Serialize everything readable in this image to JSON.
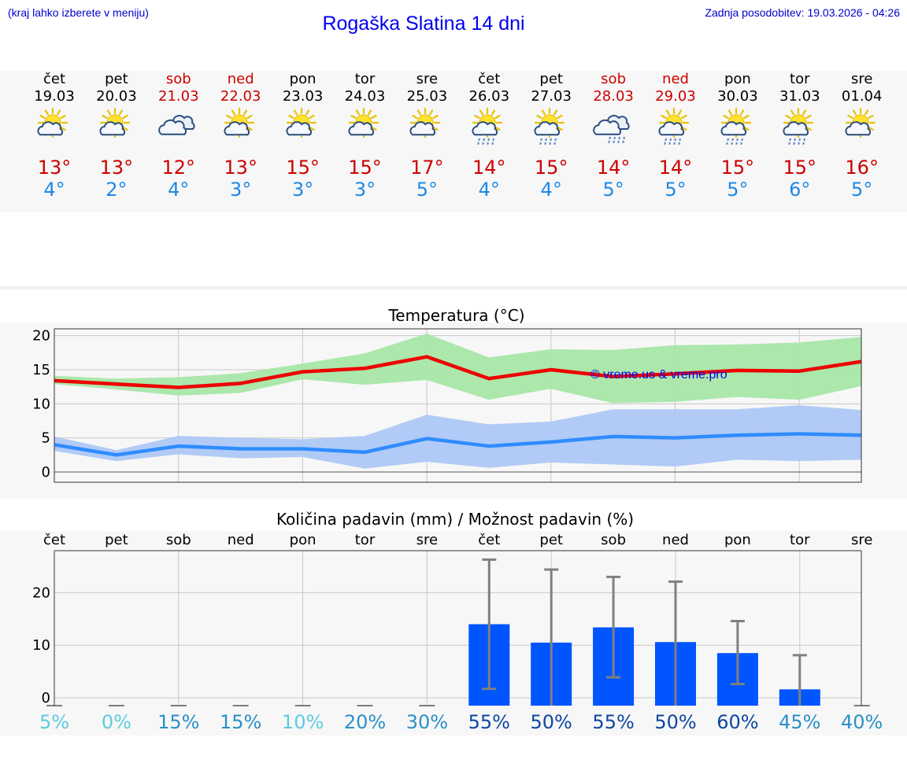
{
  "header": {
    "hint": "(kraj lahko izberete v meniju)",
    "title": "Rogaška Slatina 14 dni",
    "updated": "Zadnja posodobitev: 19.03.2026 - 04:26"
  },
  "days": [
    {
      "name": "čet",
      "date": "19.03",
      "weekend": false,
      "icon": "sun-cloud-icon",
      "max": "13°",
      "min": "4°"
    },
    {
      "name": "pet",
      "date": "20.03",
      "weekend": false,
      "icon": "sun-cloud-icon",
      "max": "13°",
      "min": "2°"
    },
    {
      "name": "sob",
      "date": "21.03",
      "weekend": true,
      "icon": "cloud-icon",
      "max": "12°",
      "min": "4°"
    },
    {
      "name": "ned",
      "date": "22.03",
      "weekend": true,
      "icon": "sun-cloud-icon",
      "max": "13°",
      "min": "3°"
    },
    {
      "name": "pon",
      "date": "23.03",
      "weekend": false,
      "icon": "sun-cloud-icon",
      "max": "15°",
      "min": "3°"
    },
    {
      "name": "tor",
      "date": "24.03",
      "weekend": false,
      "icon": "sun-cloud-icon",
      "max": "15°",
      "min": "3°"
    },
    {
      "name": "sre",
      "date": "25.03",
      "weekend": false,
      "icon": "sun-cloud-icon",
      "max": "17°",
      "min": "5°"
    },
    {
      "name": "čet",
      "date": "26.03",
      "weekend": false,
      "icon": "sun-cloud-rain-icon",
      "max": "14°",
      "min": "4°"
    },
    {
      "name": "pet",
      "date": "27.03",
      "weekend": false,
      "icon": "sun-cloud-rain-icon",
      "max": "15°",
      "min": "4°"
    },
    {
      "name": "sob",
      "date": "28.03",
      "weekend": true,
      "icon": "cloud-rain-icon",
      "max": "14°",
      "min": "5°"
    },
    {
      "name": "ned",
      "date": "29.03",
      "weekend": true,
      "icon": "sun-cloud-rain-icon",
      "max": "14°",
      "min": "5°"
    },
    {
      "name": "pon",
      "date": "30.03",
      "weekend": false,
      "icon": "sun-cloud-rain-icon",
      "max": "15°",
      "min": "5°"
    },
    {
      "name": "tor",
      "date": "31.03",
      "weekend": false,
      "icon": "sun-cloud-rain-icon",
      "max": "15°",
      "min": "6°"
    },
    {
      "name": "sre",
      "date": "01.04",
      "weekend": false,
      "icon": "sun-cloud-icon",
      "max": "16°",
      "min": "5°"
    }
  ],
  "watermark": "© vreme.us & vreme.pro",
  "colors": {
    "max": "#cc0000",
    "min": "#1e88e5",
    "max_line": "#ee0000",
    "max_band": "#a8e6a8",
    "min_line": "#2f8cff",
    "min_band": "#adc8f5",
    "bar": "#0055ff",
    "whisker": "#808080"
  },
  "chart_data": [
    {
      "type": "line",
      "title": "Temperatura (°C)",
      "x": [
        "19.03",
        "20.03",
        "21.03",
        "22.03",
        "23.03",
        "24.03",
        "25.03",
        "26.03",
        "27.03",
        "28.03",
        "29.03",
        "30.03",
        "31.03",
        "01.04"
      ],
      "ylim": [
        -1.5,
        21
      ],
      "yticks": [
        0,
        5,
        10,
        15,
        20
      ],
      "series": [
        {
          "name": "max",
          "values": [
            13.4,
            12.9,
            12.4,
            13.0,
            14.7,
            15.2,
            16.9,
            13.7,
            15.0,
            14.0,
            14.4,
            14.9,
            14.8,
            16.2
          ],
          "band_low": [
            12.9,
            12.1,
            11.2,
            11.6,
            13.6,
            12.8,
            13.5,
            10.6,
            12.2,
            10.1,
            10.3,
            11.0,
            10.6,
            12.6
          ],
          "band_high": [
            14.1,
            13.7,
            13.9,
            14.5,
            15.9,
            17.4,
            20.3,
            16.8,
            18.0,
            17.9,
            18.6,
            18.7,
            19.0,
            19.8
          ]
        },
        {
          "name": "min",
          "values": [
            4.0,
            2.5,
            3.8,
            3.4,
            3.4,
            2.9,
            4.9,
            3.8,
            4.4,
            5.2,
            5.0,
            5.4,
            5.6,
            5.4
          ],
          "band_low": [
            3.1,
            1.6,
            2.6,
            2.0,
            2.2,
            0.5,
            1.5,
            0.6,
            1.4,
            1.1,
            0.8,
            1.8,
            1.6,
            1.8
          ],
          "band_high": [
            5.2,
            3.2,
            5.3,
            5.0,
            4.8,
            5.3,
            8.4,
            7.0,
            7.4,
            9.2,
            9.2,
            9.2,
            9.8,
            9.1
          ]
        }
      ]
    },
    {
      "type": "bar",
      "title": "Količina padavin (mm) / Možnost padavin (%)",
      "categories": [
        "čet",
        "pet",
        "sob",
        "ned",
        "pon",
        "tor",
        "sre",
        "čet",
        "pet",
        "sob",
        "ned",
        "pon",
        "tor",
        "sre"
      ],
      "values": [
        0,
        0,
        0,
        0,
        0,
        0,
        0,
        14.0,
        10.5,
        13.4,
        10.6,
        8.5,
        1.6,
        0
      ],
      "err_low": [
        0,
        0,
        0,
        0,
        0,
        0,
        0,
        1.7,
        0,
        3.9,
        0,
        2.6,
        0,
        0
      ],
      "err_high": [
        0,
        0,
        0,
        0,
        0,
        0,
        0,
        26.3,
        24.4,
        23.0,
        22.1,
        14.6,
        8.1,
        0
      ],
      "ylim": [
        -1.5,
        28
      ],
      "yticks": [
        0,
        10,
        20
      ],
      "probability": [
        "5%",
        "0%",
        "15%",
        "15%",
        "10%",
        "20%",
        "30%",
        "55%",
        "50%",
        "55%",
        "50%",
        "60%",
        "45%",
        "40%"
      ]
    }
  ]
}
